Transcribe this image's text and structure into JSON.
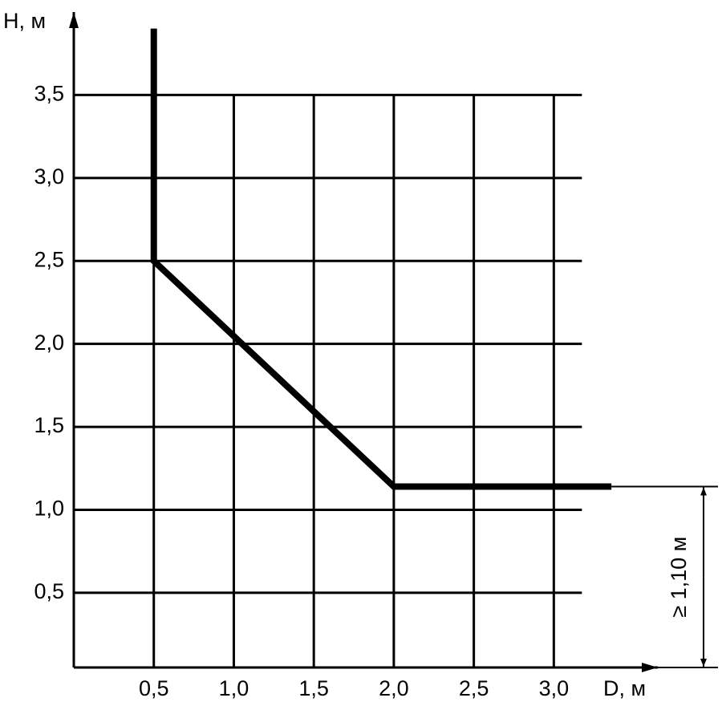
{
  "chart_data": {
    "type": "line",
    "x_label": "D, м",
    "y_label": "H, м",
    "xlim": [
      0,
      3.65
    ],
    "ylim": [
      0.05,
      4.0
    ],
    "xticks": [
      {
        "value": 0.5,
        "label": "0,5"
      },
      {
        "value": 1.0,
        "label": "1,0"
      },
      {
        "value": 1.5,
        "label": "1,5"
      },
      {
        "value": 2.0,
        "label": "2,0"
      },
      {
        "value": 2.5,
        "label": "2,5"
      },
      {
        "value": 3.0,
        "label": "3,0"
      }
    ],
    "yticks": [
      {
        "value": 0.5,
        "label": "0,5"
      },
      {
        "value": 1.0,
        "label": "1,0"
      },
      {
        "value": 1.5,
        "label": "1,5"
      },
      {
        "value": 2.0,
        "label": "2,0"
      },
      {
        "value": 2.5,
        "label": "2,5"
      },
      {
        "value": 3.0,
        "label": "3,0"
      },
      {
        "value": 3.5,
        "label": "3,5"
      }
    ],
    "grid": true,
    "series": [
      {
        "color": "#000000",
        "x": [
          0.5,
          0.5,
          2.0,
          3.36
        ],
        "values": [
          3.9,
          2.5,
          1.14,
          1.14
        ]
      }
    ],
    "annotation": "≥ 1,10 м"
  }
}
